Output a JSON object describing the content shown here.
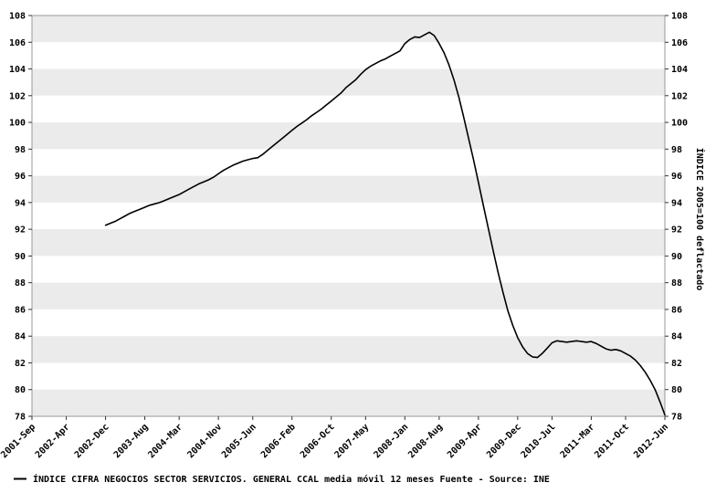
{
  "chart_data": {
    "type": "line",
    "title": "",
    "y_axis": {
      "min": 78,
      "max": 108,
      "tick_step": 2,
      "right_label": "ÍNDICE 2005=100 deflactado"
    },
    "y_ticks": [
      108,
      106,
      104,
      102,
      100,
      98,
      96,
      94,
      92,
      90,
      88,
      86,
      84,
      82,
      80,
      78
    ],
    "x_range_months": [
      0,
      129
    ],
    "x_ticks": [
      {
        "label": "2001-Sep",
        "month": 0
      },
      {
        "label": "2002-Apr",
        "month": 7
      },
      {
        "label": "2002-Dec",
        "month": 15
      },
      {
        "label": "2003-Aug",
        "month": 23
      },
      {
        "label": "2004-Mar",
        "month": 30
      },
      {
        "label": "2004-Nov",
        "month": 38
      },
      {
        "label": "2005-Jun",
        "month": 45
      },
      {
        "label": "2006-Feb",
        "month": 53
      },
      {
        "label": "2006-Oct",
        "month": 61
      },
      {
        "label": "2007-May",
        "month": 68
      },
      {
        "label": "2008-Jan",
        "month": 76
      },
      {
        "label": "2008-Aug",
        "month": 83
      },
      {
        "label": "2009-Apr",
        "month": 91
      },
      {
        "label": "2009-Dec",
        "month": 99
      },
      {
        "label": "2010-Jul",
        "month": 106
      },
      {
        "label": "2011-Mar",
        "month": 114
      },
      {
        "label": "2011-Oct",
        "month": 121
      },
      {
        "label": "2012-Jun",
        "month": 129
      }
    ],
    "stripe_colors": [
      "#ebebeb",
      "#ffffff"
    ],
    "axis_color": "#999999",
    "tick_color": "#333333",
    "grid": false,
    "legend_position": "bottom-left",
    "series": [
      {
        "name": "ÍNDICE CIFRA NEGOCIOS SECTOR SERVICIOS. GENERAL CCAL media móvil 12 meses  Fuente - Source: INE",
        "color": "#000000",
        "start_month": 15,
        "period": "monthly",
        "values": [
          92.3,
          92.45,
          92.6,
          92.8,
          93.0,
          93.2,
          93.35,
          93.5,
          93.65,
          93.8,
          93.9,
          94.0,
          94.15,
          94.3,
          94.45,
          94.6,
          94.8,
          95.0,
          95.2,
          95.4,
          95.55,
          95.7,
          95.9,
          96.15,
          96.4,
          96.6,
          96.8,
          96.95,
          97.1,
          97.2,
          97.3,
          97.35,
          97.6,
          97.9,
          98.2,
          98.5,
          98.8,
          99.1,
          99.4,
          99.7,
          99.95,
          100.2,
          100.5,
          100.75,
          101.0,
          101.3,
          101.6,
          101.9,
          102.2,
          102.6,
          102.9,
          103.2,
          103.6,
          103.95,
          104.2,
          104.4,
          104.6,
          104.75,
          104.95,
          105.15,
          105.35,
          105.9,
          106.2,
          106.4,
          106.35,
          106.55,
          106.75,
          106.5,
          105.9,
          105.2,
          104.3,
          103.2,
          101.9,
          100.4,
          98.8,
          97.2,
          95.5,
          93.8,
          92.1,
          90.4,
          88.8,
          87.3,
          85.9,
          84.8,
          83.9,
          83.2,
          82.7,
          82.45,
          82.4,
          82.7,
          83.1,
          83.5,
          83.65,
          83.6,
          83.55,
          83.6,
          83.65,
          83.6,
          83.55,
          83.6,
          83.45,
          83.25,
          83.05,
          82.95,
          83.0,
          82.9,
          82.7,
          82.5,
          82.2,
          81.8,
          81.3,
          80.7,
          80.0,
          79.1,
          78.1
        ]
      }
    ]
  }
}
